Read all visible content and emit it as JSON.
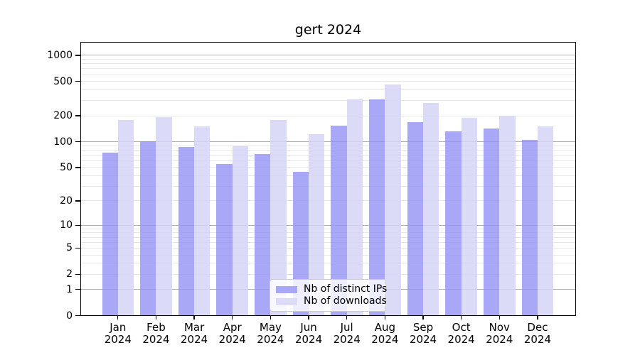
{
  "title": "gert 2024",
  "chart_data": {
    "type": "bar",
    "title": "gert 2024",
    "categories": [
      {
        "month": "Jan",
        "year": "2024"
      },
      {
        "month": "Feb",
        "year": "2024"
      },
      {
        "month": "Mar",
        "year": "2024"
      },
      {
        "month": "Apr",
        "year": "2024"
      },
      {
        "month": "May",
        "year": "2024"
      },
      {
        "month": "Jun",
        "year": "2024"
      },
      {
        "month": "Jul",
        "year": "2024"
      },
      {
        "month": "Aug",
        "year": "2024"
      },
      {
        "month": "Sep",
        "year": "2024"
      },
      {
        "month": "Oct",
        "year": "2024"
      },
      {
        "month": "Nov",
        "year": "2024"
      },
      {
        "month": "Dec",
        "year": "2024"
      }
    ],
    "series": [
      {
        "name": "Nb of distinct IPs",
        "color": "rgba(146,146,245,0.8)",
        "legend_color": "#a8a8f6",
        "values": [
          76,
          103,
          87,
          56,
          72,
          45,
          154,
          310,
          171,
          133,
          145,
          106
        ]
      },
      {
        "name": "Nb of downloads",
        "color": "rgba(213,213,247,0.85)",
        "legend_color": "#dcdcf8",
        "values": [
          180,
          196,
          152,
          89,
          180,
          124,
          311,
          463,
          284,
          190,
          202,
          152
        ]
      }
    ],
    "yscale": "log10(1+y)",
    "ylim": [
      0,
      1430
    ],
    "yticks": [
      0,
      1,
      2,
      5,
      10,
      20,
      50,
      100,
      200,
      500,
      1000
    ],
    "grid": {
      "major_values": [
        1,
        10,
        100,
        1000
      ],
      "minor_values": [
        2,
        3,
        4,
        5,
        6,
        7,
        8,
        9,
        20,
        30,
        40,
        50,
        60,
        70,
        80,
        90,
        200,
        300,
        400,
        500,
        600,
        700,
        800,
        900
      ],
      "major_color": "#b0b0b0",
      "minor_color": "#e7e7e7"
    },
    "legend_position": "lower center",
    "xlabel": "",
    "ylabel": ""
  },
  "legend": {
    "items": [
      "Nb of distinct IPs",
      "Nb of downloads"
    ]
  }
}
